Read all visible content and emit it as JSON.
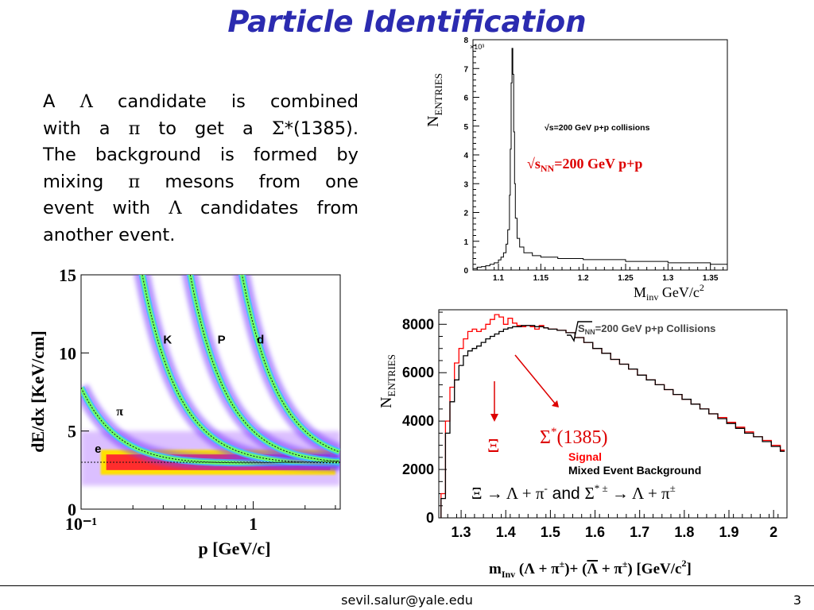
{
  "title": "Particle Identification",
  "paragraph": {
    "lines": [
      [
        "A ",
        "Λ",
        " candidate is combined"
      ],
      [
        "with a ",
        "π",
        " to get a ",
        "Σ",
        "*(1385)."
      ],
      [
        "The background is formed by"
      ],
      [
        "mixing ",
        "π",
        " mesons from one"
      ],
      [
        "event with ",
        "Λ",
        " candidates from"
      ],
      [
        "another event."
      ]
    ]
  },
  "footer": {
    "email": "sevil.salur@yale.edu",
    "page": "3"
  },
  "chart_data": [
    {
      "type": "line",
      "id": "minv-lambda-pi-peak",
      "inner_label": "√s=200 GeV p+p collisions",
      "annotation": {
        "prefix": "√s",
        "sub": "NN",
        "suffix": "=200 GeV p+p",
        "color": "#dd0000"
      },
      "xlabel": {
        "main": "M",
        "sub": "inv",
        "rest": " GeV/c",
        "sup": "2"
      },
      "ylabel": {
        "main": "N",
        "sub": "ENTRIES"
      },
      "multiplier": "×10³",
      "xlim": [
        1.07,
        1.37
      ],
      "ylim": [
        0,
        8
      ],
      "xticks": [
        "1.1",
        "1.15",
        "1.2",
        "1.25",
        "1.3",
        "1.35"
      ],
      "yticks": [
        "0",
        "1",
        "2",
        "3",
        "4",
        "5",
        "6",
        "7",
        "8"
      ],
      "x": [
        1.07,
        1.075,
        1.08,
        1.085,
        1.09,
        1.095,
        1.1,
        1.103,
        1.106,
        1.109,
        1.111,
        1.113,
        1.114,
        1.115,
        1.116,
        1.117,
        1.118,
        1.119,
        1.12,
        1.122,
        1.125,
        1.13,
        1.14,
        1.15,
        1.17,
        1.2,
        1.25,
        1.3,
        1.35,
        1.37
      ],
      "y": [
        0.05,
        0.1,
        0.12,
        0.15,
        0.2,
        0.25,
        0.35,
        0.45,
        0.6,
        0.9,
        1.4,
        2.6,
        4.2,
        6.5,
        7.7,
        6.8,
        4.8,
        3.0,
        1.8,
        1.1,
        0.8,
        0.6,
        0.5,
        0.45,
        0.4,
        0.36,
        0.3,
        0.25,
        0.2,
        0.18
      ]
    },
    {
      "type": "heatmap",
      "id": "dedx-vs-p",
      "xlabel": "p [GeV/c]",
      "ylabel": "dE/dx  [KeV/cm]",
      "xscale": "log",
      "xlim": [
        0.1,
        3.2
      ],
      "ylim": [
        0,
        15
      ],
      "xticks": [
        "10⁻¹",
        "1"
      ],
      "yticks": [
        "0",
        "5",
        "10",
        "15"
      ],
      "band_labels": [
        "e",
        "π",
        "K",
        "P",
        "d"
      ],
      "bands": [
        {
          "name": "π",
          "mass": 0.14
        },
        {
          "name": "K",
          "mass": 0.494
        },
        {
          "name": "P",
          "mass": 0.938
        },
        {
          "name": "d",
          "mass": 1.876
        }
      ]
    },
    {
      "type": "line",
      "id": "sigma-star-minv",
      "inner_label": "S",
      "inner_label_sub": "NN",
      "inner_label_suffix": "=200 GeV p+p Collisions",
      "xlabel": "m Inv (Λ + π ±)+ (Λ + π ±)  [GeV/c 2]",
      "xlabel_parts": {
        "m": "m",
        "sub": "Inv",
        "body": " (Λ + π",
        "pm": "±",
        "mid": ")+ (",
        "lambdabar": "Λ",
        "mid2": " + π",
        "pm2": "±",
        "close": ")  [GeV/c",
        "sup": "2",
        "end": "]"
      },
      "ylabel": {
        "main": "N",
        "sub": "ENTRIES"
      },
      "xlim": [
        1.25,
        2.03
      ],
      "ylim": [
        0,
        8600
      ],
      "xticks": [
        "1.3",
        "1.4",
        "1.5",
        "1.6",
        "1.7",
        "1.8",
        "1.9",
        "2"
      ],
      "yticks": [
        "0",
        "2000",
        "4000",
        "6000",
        "8000"
      ],
      "legend": [
        {
          "name": "Signal",
          "color": "#ff0000"
        },
        {
          "name": "Mixed Event Background",
          "color": "#000000"
        }
      ],
      "annotations": {
        "xi": "Ξ",
        "sigma": "Σ",
        "sigma_sup": "*",
        "sigma_rest": "(1385)",
        "decay1": "Ξ → Λ + π",
        "decay1_sup": "-",
        "and": "and",
        "decay2": "Σ",
        "decay2_sup": "* ±",
        "decay2_rest": " → Λ + π",
        "decay2_sup2": "±"
      },
      "x": [
        1.26,
        1.27,
        1.28,
        1.29,
        1.3,
        1.31,
        1.32,
        1.33,
        1.34,
        1.35,
        1.36,
        1.37,
        1.38,
        1.39,
        1.4,
        1.41,
        1.42,
        1.43,
        1.44,
        1.45,
        1.46,
        1.47,
        1.48,
        1.49,
        1.5,
        1.52,
        1.54,
        1.56,
        1.58,
        1.6,
        1.62,
        1.64,
        1.66,
        1.68,
        1.7,
        1.72,
        1.74,
        1.76,
        1.78,
        1.8,
        1.82,
        1.84,
        1.86,
        1.88,
        1.9,
        1.92,
        1.94,
        1.96,
        1.98,
        2.0,
        2.02
      ],
      "series": [
        {
          "name": "Signal",
          "color": "#ff0000",
          "values": [
            1000,
            4000,
            5400,
            6400,
            7000,
            7400,
            7700,
            7800,
            7700,
            7800,
            8000,
            8200,
            8400,
            8300,
            8000,
            8250,
            8050,
            7950,
            7900,
            7950,
            7900,
            7800,
            7950,
            7850,
            7800,
            7750,
            7650,
            7450,
            7250,
            7000,
            6800,
            6550,
            6350,
            6150,
            5900,
            5700,
            5500,
            5300,
            5100,
            4900,
            4700,
            4500,
            4300,
            4150,
            3950,
            3750,
            3550,
            3350,
            3200,
            3000,
            2800
          ]
        },
        {
          "name": "Mixed Event Background",
          "color": "#000000",
          "values": [
            800,
            3500,
            4800,
            5700,
            6300,
            6700,
            6900,
            7000,
            7100,
            7250,
            7400,
            7500,
            7600,
            7700,
            7800,
            7850,
            7900,
            7900,
            7950,
            7950,
            7950,
            7900,
            7900,
            7850,
            7800,
            7750,
            7650,
            7450,
            7250,
            7000,
            6800,
            6550,
            6350,
            6150,
            5900,
            5700,
            5500,
            5300,
            5100,
            4900,
            4700,
            4500,
            4300,
            4100,
            3900,
            3700,
            3500,
            3350,
            3150,
            2950,
            2750
          ]
        }
      ]
    }
  ]
}
